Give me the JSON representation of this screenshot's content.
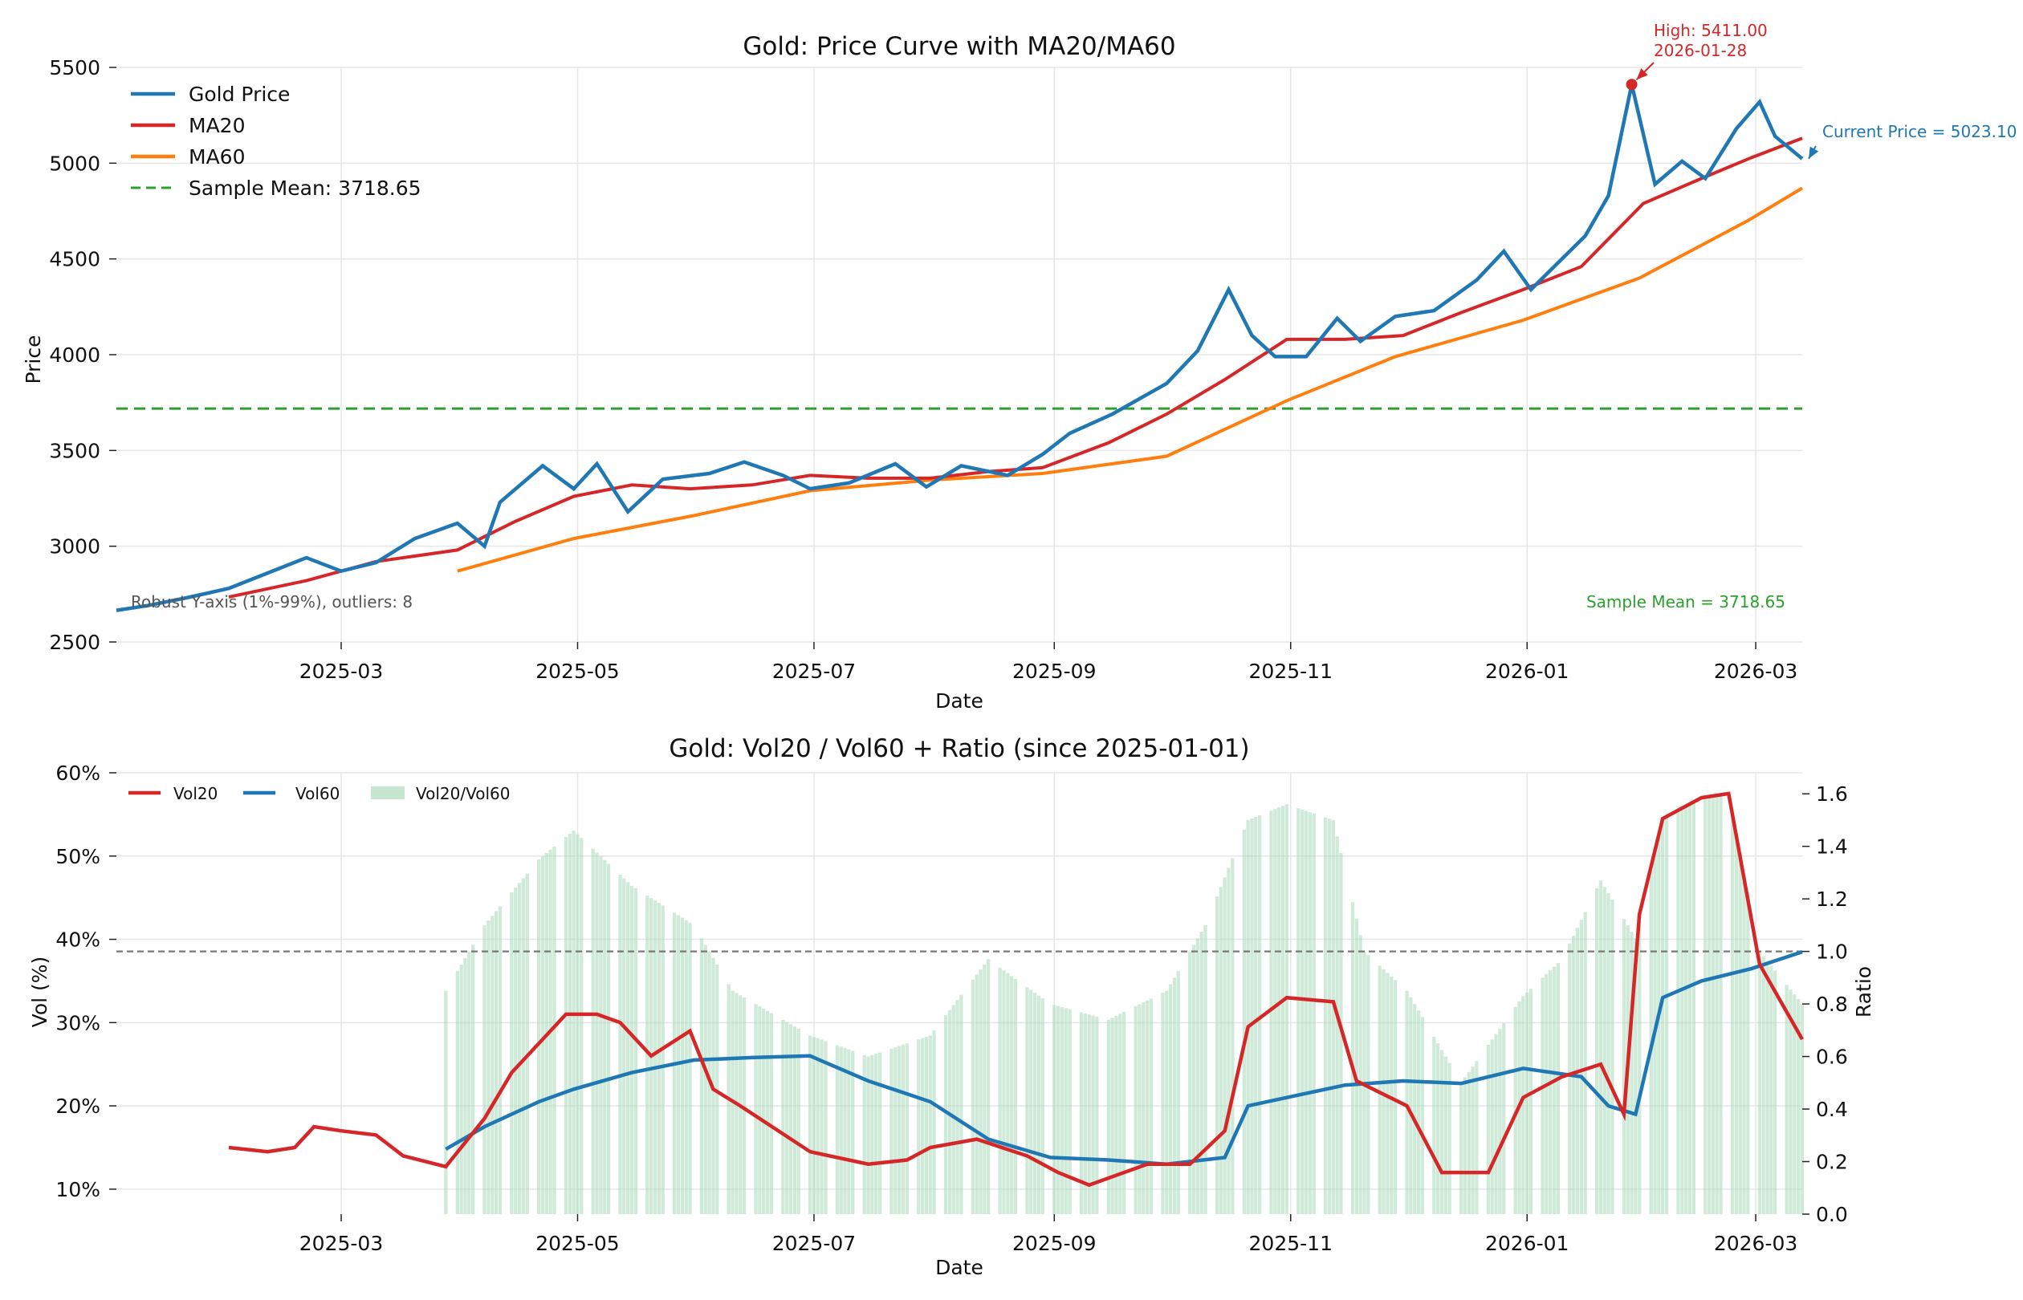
{
  "chart_data": [
    {
      "type": "line",
      "title": "Gold: Price Curve with MA20/MA60",
      "xlabel": "Date",
      "ylabel": "Price",
      "ylim": [
        2500,
        5500
      ],
      "xlim": [
        "2025-01-02",
        "2026-03-13"
      ],
      "yticks": [
        2500,
        3000,
        3500,
        4000,
        4500,
        5000,
        5500
      ],
      "yticklabels": [
        "2500",
        "3000",
        "3500",
        "4000",
        "4500",
        "5000",
        "5500"
      ],
      "xticks": [
        "2025-03-01",
        "2025-05-01",
        "2025-07-01",
        "2025-09-01",
        "2025-11-01",
        "2026-01-01",
        "2026-03-01"
      ],
      "xticklabels": [
        "2025-03",
        "2025-05",
        "2025-07",
        "2025-09",
        "2025-11",
        "2026-01",
        "2026-03"
      ],
      "grid": true,
      "legend_position": "top-left",
      "legend": [
        "Gold Price",
        "MA20",
        "MA60",
        "Sample Mean: 3718.65"
      ],
      "colors": {
        "price": "#1f77b4",
        "ma20": "#d62728",
        "ma60": "#ff7f0e",
        "mean": "#2ca02c",
        "high": "#d62728",
        "note": "#555555"
      },
      "sample_mean": 3718.65,
      "series": [
        {
          "name": "Gold Price",
          "points": [
            [
              "2025-01-02",
              2665
            ],
            [
              "2025-01-10",
              2690
            ],
            [
              "2025-01-20",
              2730
            ],
            [
              "2025-01-31",
              2780
            ],
            [
              "2025-02-10",
              2860
            ],
            [
              "2025-02-20",
              2940
            ],
            [
              "2025-03-01",
              2870
            ],
            [
              "2025-03-10",
              2915
            ],
            [
              "2025-03-20",
              3040
            ],
            [
              "2025-03-31",
              3120
            ],
            [
              "2025-04-07",
              3000
            ],
            [
              "2025-04-11",
              3230
            ],
            [
              "2025-04-22",
              3420
            ],
            [
              "2025-04-30",
              3300
            ],
            [
              "2025-05-06",
              3430
            ],
            [
              "2025-05-14",
              3180
            ],
            [
              "2025-05-23",
              3350
            ],
            [
              "2025-06-04",
              3380
            ],
            [
              "2025-06-13",
              3440
            ],
            [
              "2025-06-23",
              3370
            ],
            [
              "2025-06-30",
              3300
            ],
            [
              "2025-07-10",
              3330
            ],
            [
              "2025-07-22",
              3430
            ],
            [
              "2025-07-30",
              3310
            ],
            [
              "2025-08-08",
              3420
            ],
            [
              "2025-08-20",
              3370
            ],
            [
              "2025-08-29",
              3480
            ],
            [
              "2025-09-05",
              3590
            ],
            [
              "2025-09-16",
              3690
            ],
            [
              "2025-09-30",
              3850
            ],
            [
              "2025-10-08",
              4020
            ],
            [
              "2025-10-16",
              4340
            ],
            [
              "2025-10-22",
              4100
            ],
            [
              "2025-10-28",
              3990
            ],
            [
              "2025-11-05",
              3990
            ],
            [
              "2025-11-13",
              4190
            ],
            [
              "2025-11-19",
              4070
            ],
            [
              "2025-11-28",
              4200
            ],
            [
              "2025-12-08",
              4230
            ],
            [
              "2025-12-19",
              4390
            ],
            [
              "2025-12-26",
              4540
            ],
            [
              "2026-01-02",
              4340
            ],
            [
              "2026-01-09",
              4480
            ],
            [
              "2026-01-16",
              4620
            ],
            [
              "2026-01-22",
              4830
            ],
            [
              "2026-01-28",
              5411
            ],
            [
              "2026-02-03",
              4890
            ],
            [
              "2026-02-10",
              5010
            ],
            [
              "2026-02-16",
              4920
            ],
            [
              "2026-02-24",
              5180
            ],
            [
              "2026-03-02",
              5320
            ],
            [
              "2026-03-06",
              5140
            ],
            [
              "2026-03-13",
              5023.1
            ]
          ]
        },
        {
          "name": "MA20",
          "points": [
            [
              "2025-01-31",
              2735
            ],
            [
              "2025-02-20",
              2820
            ],
            [
              "2025-03-10",
              2920
            ],
            [
              "2025-03-31",
              2980
            ],
            [
              "2025-04-15",
              3130
            ],
            [
              "2025-04-30",
              3260
            ],
            [
              "2025-05-15",
              3320
            ],
            [
              "2025-05-30",
              3300
            ],
            [
              "2025-06-15",
              3320
            ],
            [
              "2025-06-30",
              3370
            ],
            [
              "2025-07-15",
              3355
            ],
            [
              "2025-07-31",
              3355
            ],
            [
              "2025-08-15",
              3390
            ],
            [
              "2025-08-29",
              3410
            ],
            [
              "2025-09-15",
              3540
            ],
            [
              "2025-09-30",
              3690
            ],
            [
              "2025-10-15",
              3870
            ],
            [
              "2025-10-31",
              4080
            ],
            [
              "2025-11-15",
              4080
            ],
            [
              "2025-11-30",
              4100
            ],
            [
              "2025-12-15",
              4220
            ],
            [
              "2025-12-31",
              4340
            ],
            [
              "2026-01-15",
              4460
            ],
            [
              "2026-01-31",
              4790
            ],
            [
              "2026-02-15",
              4920
            ],
            [
              "2026-02-28",
              5030
            ],
            [
              "2026-03-13",
              5130
            ]
          ]
        },
        {
          "name": "MA60",
          "points": [
            [
              "2025-03-31",
              2870
            ],
            [
              "2025-04-30",
              3040
            ],
            [
              "2025-05-31",
              3160
            ],
            [
              "2025-06-30",
              3290
            ],
            [
              "2025-07-31",
              3345
            ],
            [
              "2025-08-29",
              3380
            ],
            [
              "2025-09-30",
              3470
            ],
            [
              "2025-10-31",
              3760
            ],
            [
              "2025-11-28",
              3990
            ],
            [
              "2025-12-31",
              4180
            ],
            [
              "2026-01-30",
              4400
            ],
            [
              "2026-02-27",
              4700
            ],
            [
              "2026-03-13",
              4870
            ]
          ]
        }
      ],
      "annotations": {
        "high_label": "High: 5411.00",
        "high_date": "2026-01-28",
        "high_value": 5411.0,
        "current_label": "Current Price = 5023.10",
        "current_value": 5023.1,
        "mean_label": "Sample Mean = 3718.65",
        "robust_note": "Robust Y-axis (1%-99%), outliers: 8"
      }
    },
    {
      "type": "line",
      "title": "Gold: Vol20 / Vol60 + Ratio (since 2025-01-01)",
      "xlabel": "Date",
      "ylabel": "Vol (%)",
      "ylabel_right": "Ratio",
      "ylim": [
        7,
        60
      ],
      "ylim_right": [
        0,
        1.68
      ],
      "xlim": [
        "2025-01-02",
        "2026-03-13"
      ],
      "yticks": [
        10,
        20,
        30,
        40,
        50,
        60
      ],
      "yticklabels": [
        "10%",
        "20%",
        "30%",
        "40%",
        "50%",
        "60%"
      ],
      "yticks_right": [
        0,
        0.2,
        0.4,
        0.6,
        0.8,
        1.0,
        1.2,
        1.4,
        1.6
      ],
      "yticklabels_right": [
        "0.0",
        "0.2",
        "0.4",
        "0.6",
        "0.8",
        "1.0",
        "1.2",
        "1.4",
        "1.6"
      ],
      "xticks": [
        "2025-03-01",
        "2025-05-01",
        "2025-07-01",
        "2025-09-01",
        "2025-11-01",
        "2026-01-01",
        "2026-03-01"
      ],
      "xticklabels": [
        "2025-03",
        "2025-05",
        "2025-07",
        "2025-09",
        "2025-11",
        "2026-01",
        "2026-03"
      ],
      "grid": true,
      "legend_position": "top-left",
      "legend": [
        "Vol20",
        "Vol60",
        "Vol20/Vol60"
      ],
      "reference_line_ratio": 1.0,
      "colors": {
        "vol20": "#d62728",
        "vol60": "#1f77b4",
        "ratio": "#a8d8b9",
        "ref": "#777777"
      },
      "series": [
        {
          "name": "Vol20",
          "points": [
            [
              "2025-01-31",
              15
            ],
            [
              "2025-02-10",
              14.5
            ],
            [
              "2025-02-17",
              15
            ],
            [
              "2025-02-22",
              17.5
            ],
            [
              "2025-03-01",
              17
            ],
            [
              "2025-03-10",
              16.5
            ],
            [
              "2025-03-17",
              14
            ],
            [
              "2025-03-28",
              12.7
            ],
            [
              "2025-04-07",
              18.5
            ],
            [
              "2025-04-14",
              24
            ],
            [
              "2025-04-22",
              28
            ],
            [
              "2025-04-28",
              31
            ],
            [
              "2025-05-06",
              31
            ],
            [
              "2025-05-12",
              30
            ],
            [
              "2025-05-20",
              26
            ],
            [
              "2025-05-30",
              29
            ],
            [
              "2025-06-05",
              22
            ],
            [
              "2025-06-12",
              20
            ],
            [
              "2025-06-30",
              14.5
            ],
            [
              "2025-07-15",
              13
            ],
            [
              "2025-07-25",
              13.5
            ],
            [
              "2025-07-31",
              15
            ],
            [
              "2025-08-12",
              16
            ],
            [
              "2025-08-25",
              14
            ],
            [
              "2025-09-02",
              12
            ],
            [
              "2025-09-10",
              10.5
            ],
            [
              "2025-09-25",
              13
            ],
            [
              "2025-10-06",
              13
            ],
            [
              "2025-10-15",
              17
            ],
            [
              "2025-10-21",
              29.5
            ],
            [
              "2025-10-31",
              33
            ],
            [
              "2025-11-12",
              32.5
            ],
            [
              "2025-11-18",
              23
            ],
            [
              "2025-12-01",
              20
            ],
            [
              "2025-12-10",
              12
            ],
            [
              "2025-12-22",
              12
            ],
            [
              "2025-12-31",
              21
            ],
            [
              "2026-01-10",
              23.5
            ],
            [
              "2026-01-20",
              25
            ],
            [
              "2026-01-26",
              19
            ],
            [
              "2026-01-30",
              43
            ],
            [
              "2026-02-05",
              54.5
            ],
            [
              "2026-02-15",
              57
            ],
            [
              "2026-02-22",
              57.5
            ],
            [
              "2026-03-02",
              37
            ],
            [
              "2026-03-13",
              28
            ]
          ]
        },
        {
          "name": "Vol60",
          "points": [
            [
              "2025-03-28",
              14.8
            ],
            [
              "2025-04-07",
              17.5
            ],
            [
              "2025-04-21",
              20.5
            ],
            [
              "2025-04-30",
              22
            ],
            [
              "2025-05-15",
              24
            ],
            [
              "2025-05-31",
              25.5
            ],
            [
              "2025-06-15",
              25.8
            ],
            [
              "2025-06-30",
              26
            ],
            [
              "2025-07-15",
              23
            ],
            [
              "2025-07-31",
              20.5
            ],
            [
              "2025-08-15",
              16
            ],
            [
              "2025-08-31",
              13.8
            ],
            [
              "2025-09-15",
              13.5
            ],
            [
              "2025-09-30",
              13
            ],
            [
              "2025-10-15",
              13.8
            ],
            [
              "2025-10-21",
              20
            ],
            [
              "2025-10-31",
              21
            ],
            [
              "2025-11-15",
              22.5
            ],
            [
              "2025-11-30",
              23
            ],
            [
              "2025-12-15",
              22.7
            ],
            [
              "2025-12-31",
              24.5
            ],
            [
              "2026-01-15",
              23.5
            ],
            [
              "2026-01-22",
              20
            ],
            [
              "2026-01-29",
              19
            ],
            [
              "2026-02-05",
              33
            ],
            [
              "2026-02-15",
              35
            ],
            [
              "2026-02-28",
              36.5
            ],
            [
              "2026-03-13",
              38.5
            ]
          ]
        },
        {
          "name": "Vol20/Vol60",
          "points": [
            [
              "2025-03-28",
              0.85
            ],
            [
              "2025-04-07",
              1.1
            ],
            [
              "2025-04-21",
              1.35
            ],
            [
              "2025-04-30",
              1.46
            ],
            [
              "2025-05-15",
              1.25
            ],
            [
              "2025-05-31",
              1.1
            ],
            [
              "2025-06-10",
              0.85
            ],
            [
              "2025-06-30",
              0.68
            ],
            [
              "2025-07-15",
              0.6
            ],
            [
              "2025-07-31",
              0.68
            ],
            [
              "2025-08-15",
              0.97
            ],
            [
              "2025-08-31",
              0.8
            ],
            [
              "2025-09-15",
              0.74
            ],
            [
              "2025-09-30",
              0.85
            ],
            [
              "2025-10-10",
              1.1
            ],
            [
              "2025-10-21",
              1.5
            ],
            [
              "2025-10-31",
              1.56
            ],
            [
              "2025-11-12",
              1.5
            ],
            [
              "2025-11-20",
              1.0
            ],
            [
              "2025-12-01",
              0.85
            ],
            [
              "2025-12-15",
              0.5
            ],
            [
              "2025-12-31",
              0.83
            ],
            [
              "2026-01-10",
              0.97
            ],
            [
              "2026-01-20",
              1.27
            ],
            [
              "2026-01-29",
              1.05
            ],
            [
              "2026-02-05",
              1.5
            ],
            [
              "2026-02-15",
              1.58
            ],
            [
              "2026-02-22",
              1.6
            ],
            [
              "2026-03-02",
              1.0
            ],
            [
              "2026-03-13",
              0.8
            ]
          ]
        }
      ]
    }
  ]
}
